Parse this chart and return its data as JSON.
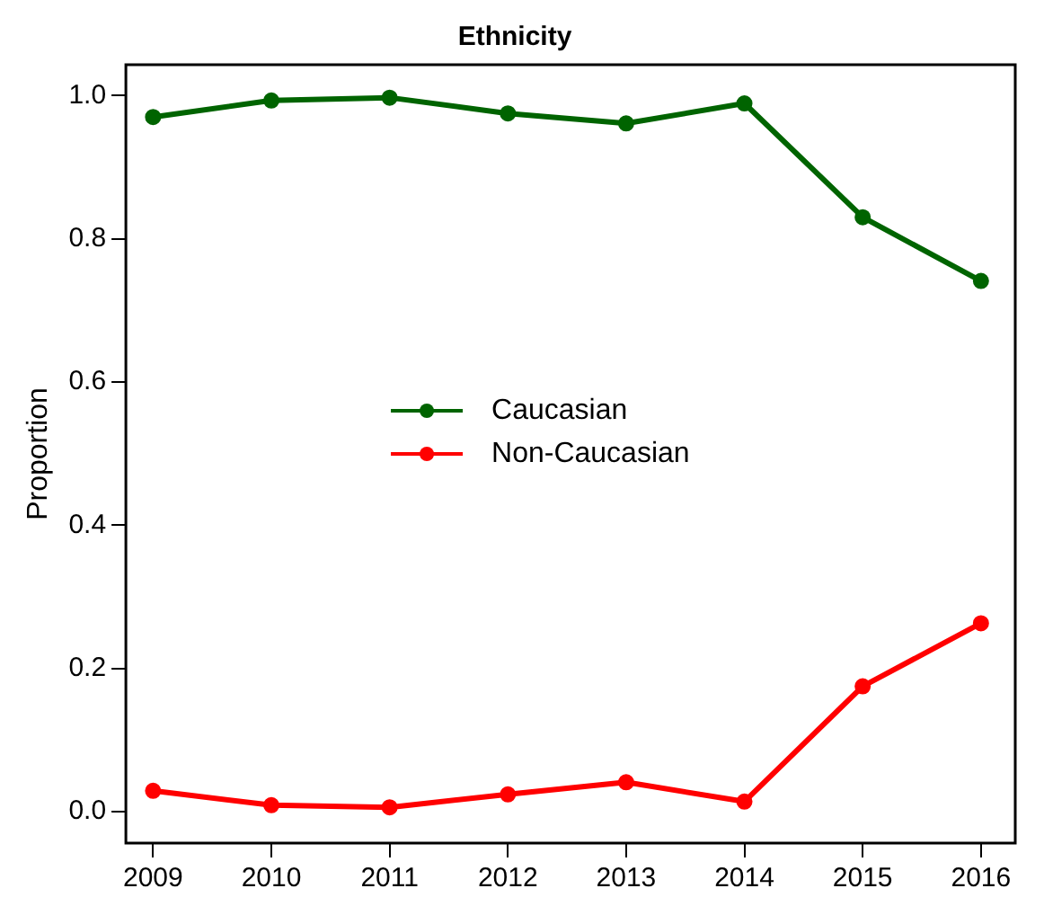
{
  "chart_data": {
    "type": "line",
    "title": "Ethnicity",
    "ylabel": "Proportion",
    "x": [
      2009,
      2010,
      2011,
      2012,
      2013,
      2014,
      2015,
      2016
    ],
    "series": [
      {
        "name": "Caucasian",
        "color": "#006400",
        "values": [
          0.97,
          0.993,
          0.997,
          0.975,
          0.961,
          0.989,
          0.83,
          0.741
        ]
      },
      {
        "name": "Non-Caucasian",
        "color": "#ff0000",
        "values": [
          0.029,
          0.009,
          0.006,
          0.024,
          0.041,
          0.014,
          0.175,
          0.263
        ]
      }
    ],
    "xlim": [
      2008.77,
      2016.29
    ],
    "xticks": [
      2009,
      2010,
      2011,
      2012,
      2013,
      2014,
      2015,
      2016
    ],
    "ylim": [
      -0.044,
      1.043
    ],
    "yticks": [
      {
        "value": 0,
        "label": "0.0"
      },
      {
        "value": 0.2,
        "label": "0.2"
      },
      {
        "value": 0.4,
        "label": "0.4"
      },
      {
        "value": 0.6,
        "label": "0.6"
      },
      {
        "value": 0.8,
        "label": "0.8"
      },
      {
        "value": 1,
        "label": "1.0"
      }
    ],
    "grid": false,
    "legend": "center",
    "marker": "circle",
    "line_style": "solid"
  }
}
